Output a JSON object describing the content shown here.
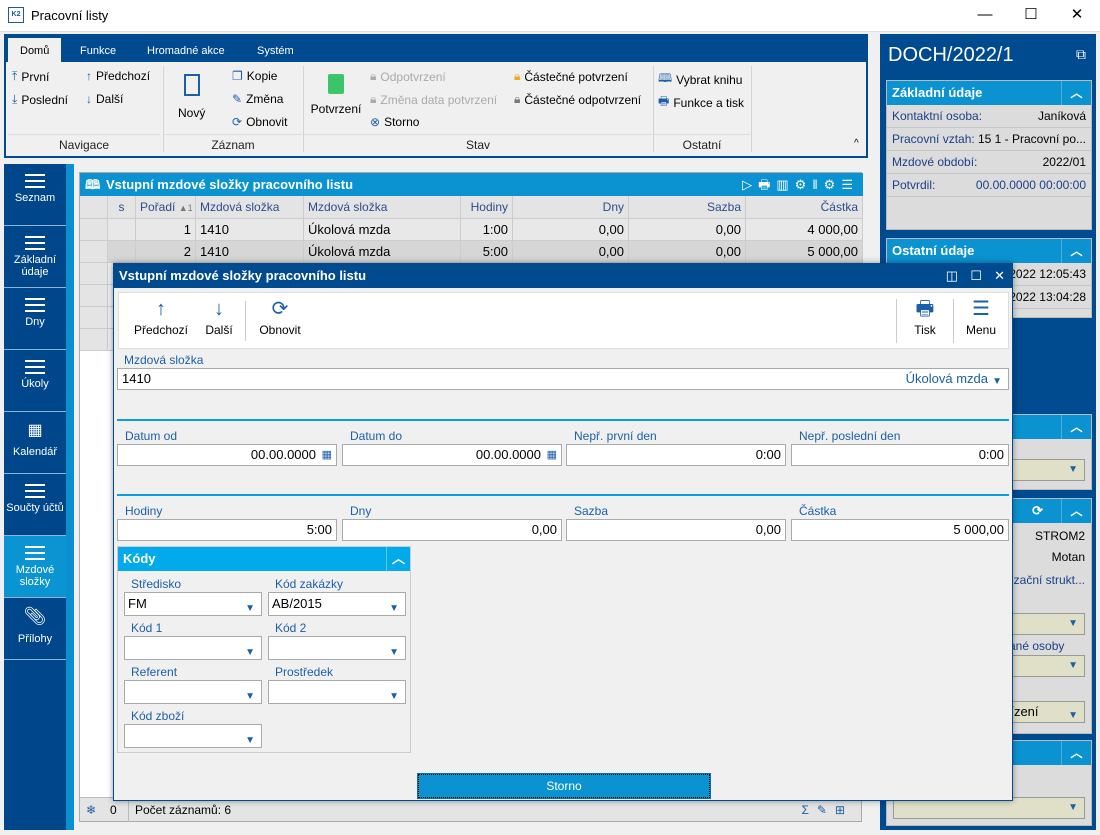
{
  "window": {
    "title": "Pracovní listy",
    "logo": "K2",
    "minimize": "—",
    "maximize": "☐",
    "close": "✕"
  },
  "ribbon": {
    "tabs": [
      "Domů",
      "Funkce",
      "Hromadné akce",
      "Systém"
    ],
    "navigace": {
      "group": "Navigace",
      "first": "První",
      "prev": "Předchozí",
      "last": "Poslední",
      "next": "Další"
    },
    "zaznam": {
      "group": "Záznam",
      "new": "Nový",
      "copy": "Kopie",
      "edit": "Změna",
      "refresh": "Obnovit"
    },
    "stav": {
      "group": "Stav",
      "confirm": "Potvrzení",
      "unconfirm": "Odpotvrzení",
      "change_date": "Změna data potvrzení",
      "storno": "Storno",
      "partial_confirm": "Částečné potvrzení",
      "partial_unconfirm": "Částečné odpotvrzení"
    },
    "ostatni": {
      "group": "Ostatní",
      "select_book": "Vybrat knihu",
      "functions_print": "Funkce a tisk"
    }
  },
  "sidebar": {
    "items": [
      {
        "label": "Seznam"
      },
      {
        "label": "Základní údaje"
      },
      {
        "label": "Dny"
      },
      {
        "label": "Úkoly"
      },
      {
        "label": "Kalendář"
      },
      {
        "label": "Součty účtů"
      },
      {
        "label": "Mzdové složky",
        "active": true
      },
      {
        "label": "Přílohy"
      }
    ]
  },
  "grid": {
    "title": "Vstupní mzdové složky pracovního listu",
    "columns": [
      "s",
      "Pořadí",
      "Mzdová složka",
      "Mzdová složka",
      "Hodiny",
      "Dny",
      "Sazba",
      "Částka"
    ],
    "sort_indicator": "▲1",
    "rows": [
      [
        "",
        "1",
        "1410",
        "Úkolová mzda",
        "1:00",
        "0,00",
        "0,00",
        "4 000,00"
      ],
      [
        "",
        "2",
        "1410",
        "Úkolová mzda",
        "5:00",
        "0,00",
        "0,00",
        "5 000,00"
      ]
    ],
    "status": {
      "count_icon_value": "0",
      "records": "Počet záznamů: 6"
    }
  },
  "rightpanel": {
    "title": "DOCH/2022/1",
    "basic": {
      "title": "Základní údaje",
      "rows": [
        {
          "label": "Kontaktní osoba:",
          "value": "Janíková"
        },
        {
          "label": "Pracovní vztah:",
          "value": "15 1 - Pracovní po..."
        },
        {
          "label": "Mzdové období:",
          "value": "2022/01"
        },
        {
          "label": "Potvrdil:",
          "value": "00.00.0000 00:00:00"
        }
      ]
    },
    "other": {
      "title": "Ostatní údaje",
      "rows": [
        ".2022 12:05:43",
        ".2022 13:04:28"
      ]
    },
    "frag": {
      "strom": "STROM2",
      "motan": "Motan",
      "org": "zační strukt...",
      "osoby": "rané osoby",
      "rizeni": "řízení"
    }
  },
  "dialog": {
    "title": "Vstupní mzdové složky pracovního listu",
    "toolbar": {
      "prev": "Předchozí",
      "next": "Další",
      "refresh": "Obnovit",
      "print": "Tisk",
      "menu": "Menu"
    },
    "mzdova_slozka": {
      "label": "Mzdová složka",
      "code": "1410",
      "name": "Úkolová mzda"
    },
    "dates": [
      {
        "label": "Datum od",
        "value": "00.00.0000"
      },
      {
        "label": "Datum do",
        "value": "00.00.0000"
      },
      {
        "label": "Nepř. první den",
        "value": "0:00"
      },
      {
        "label": "Nepř. poslední den",
        "value": "0:00"
      }
    ],
    "amounts": [
      {
        "label": "Hodiny",
        "value": "5:00"
      },
      {
        "label": "Dny",
        "value": "0,00"
      },
      {
        "label": "Sazba",
        "value": "0,00"
      },
      {
        "label": "Částka",
        "value": "5 000,00"
      }
    ],
    "kody": {
      "title": "Kódy",
      "fields": [
        {
          "label": "Středisko",
          "value": "FM"
        },
        {
          "label": "Kód zakázky",
          "value": "AB/2015"
        },
        {
          "label": "Kód 1",
          "value": ""
        },
        {
          "label": "Kód 2",
          "value": ""
        },
        {
          "label": "Referent",
          "value": ""
        },
        {
          "label": "Prostředek",
          "value": ""
        },
        {
          "label": "Kód zboží",
          "value": ""
        }
      ]
    },
    "storno": "Storno"
  },
  "colors": {
    "dark_blue": "#004a8f",
    "accent_blue": "#0a93d0",
    "kody_header": "#00aaeb",
    "lock_green": "#3cc46a",
    "lock_orange": "#f5a623"
  }
}
